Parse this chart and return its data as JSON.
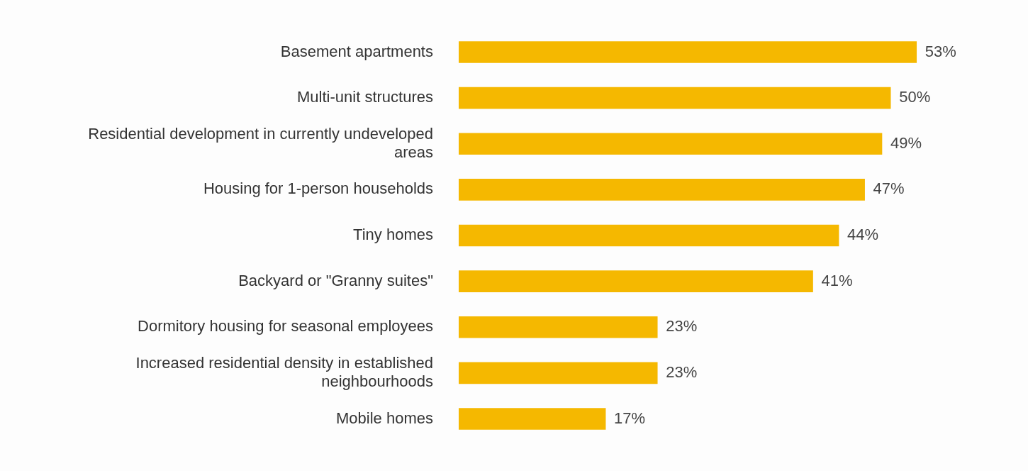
{
  "chart_data": {
    "type": "bar",
    "orientation": "horizontal",
    "categories": [
      "Basement apartments",
      "Multi-unit structures",
      "Residential development in currently undeveloped areas",
      "Housing for 1-person households",
      "Tiny homes",
      "Backyard or \"Granny suites\"",
      "Dormitory housing for seasonal employees",
      "Increased residential density in established neighbourhoods",
      "Mobile homes"
    ],
    "values": [
      53,
      50,
      49,
      47,
      44,
      41,
      23,
      23,
      17
    ],
    "value_labels": [
      "53%",
      "50%",
      "49%",
      "47%",
      "44%",
      "41%",
      "23%",
      "23%",
      "17%"
    ],
    "color": "#f5b800",
    "legend": false
  }
}
